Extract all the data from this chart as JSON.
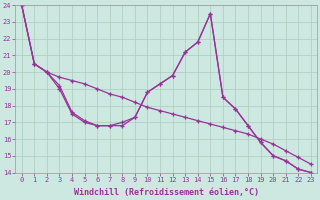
{
  "xlabel": "Windchill (Refroidissement éolien,°C)",
  "bg_color": "#cce8e0",
  "grid_color": "#aaccbb",
  "line_color": "#993399",
  "tick_color": "#993399",
  "x": [
    0,
    1,
    2,
    3,
    4,
    5,
    6,
    7,
    8,
    9,
    10,
    11,
    12,
    13,
    14,
    15,
    16,
    17,
    18,
    19,
    20,
    21,
    22,
    23
  ],
  "line1": [
    24.0,
    20.5,
    20.0,
    19.0,
    17.5,
    17.0,
    16.8,
    16.8,
    17.0,
    17.3,
    18.8,
    19.3,
    19.8,
    21.2,
    21.8,
    23.5,
    18.5,
    17.8,
    16.8,
    15.8,
    15.0,
    14.7,
    14.2,
    14.0
  ],
  "line2": [
    24.0,
    20.5,
    20.0,
    19.7,
    19.5,
    19.3,
    19.0,
    18.7,
    18.5,
    18.2,
    17.9,
    17.7,
    17.5,
    17.3,
    17.1,
    16.9,
    16.7,
    16.5,
    16.3,
    16.0,
    15.7,
    15.3,
    14.9,
    14.5
  ],
  "line3": [
    24.0,
    20.5,
    20.0,
    19.2,
    17.6,
    17.1,
    16.8,
    16.8,
    16.8,
    17.3,
    18.8,
    19.3,
    19.8,
    21.2,
    21.8,
    23.5,
    18.5,
    17.8,
    16.8,
    15.8,
    15.0,
    14.7,
    14.2,
    14.0
  ],
  "ylim": [
    14,
    24
  ],
  "xlim": [
    -0.5,
    23.5
  ],
  "yticks": [
    14,
    15,
    16,
    17,
    18,
    19,
    20,
    21,
    22,
    23,
    24
  ],
  "xticks": [
    0,
    1,
    2,
    3,
    4,
    5,
    6,
    7,
    8,
    9,
    10,
    11,
    12,
    13,
    14,
    15,
    16,
    17,
    18,
    19,
    20,
    21,
    22,
    23
  ],
  "tick_fontsize": 5.0,
  "xlabel_fontsize": 6.0
}
